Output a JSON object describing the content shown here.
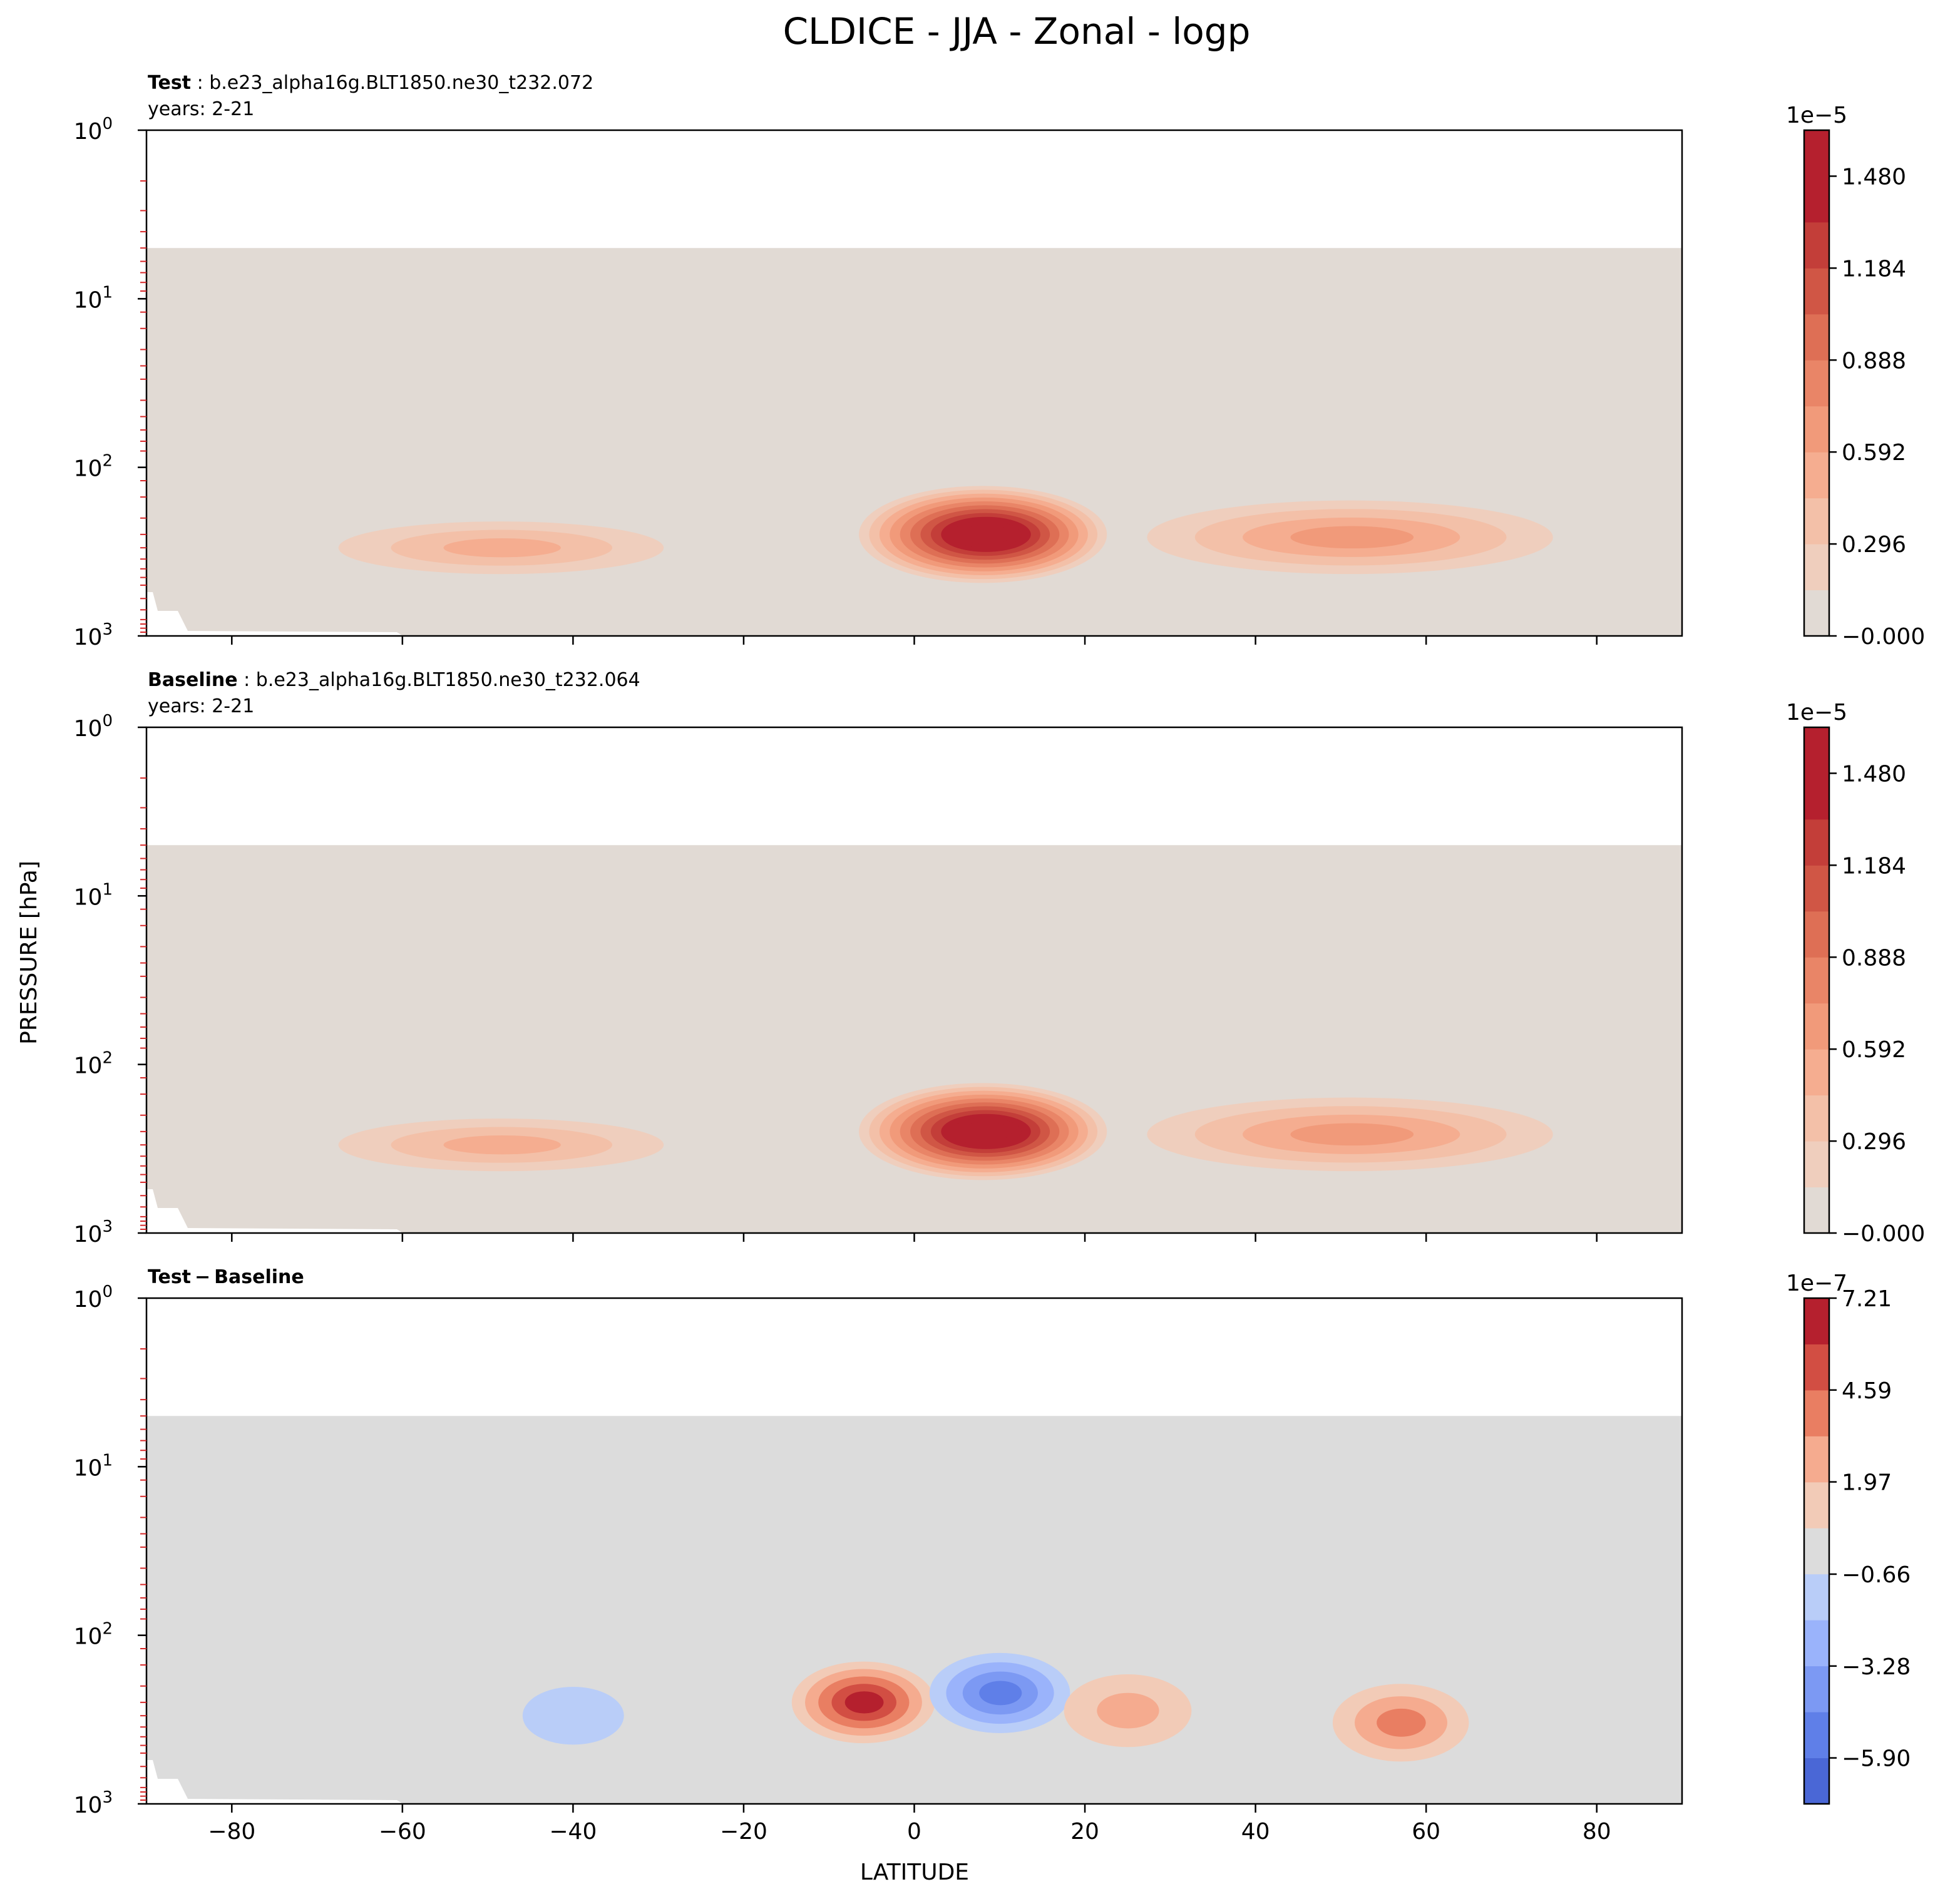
{
  "figure": {
    "title": "CLDICE - JJA - Zonal - logp",
    "ylabel": "PRESSURE [hPa]",
    "xlabel": "LATITUDE"
  },
  "chart_data": [
    {
      "type": "heatmap",
      "panel": "test",
      "header_bold": "Test",
      "header_text": ": b.e23_alpha16g.BLT1850.ne30_t232.072",
      "subheader": "years: 2-21",
      "x_range": [
        -90,
        90
      ],
      "y_range_hPa": [
        1000,
        1
      ],
      "y_scale": "log",
      "x_ticks": [
        -80,
        -60,
        -40,
        -20,
        0,
        20,
        40,
        60,
        80
      ],
      "x_tick_labels_shown": false,
      "y_tick_labels": [
        "10^0",
        "10^1",
        "10^2",
        "10^3"
      ],
      "data_top_hPa": 5,
      "colorbar": {
        "offset_label": "1e−5",
        "tick_labels": [
          "1.480",
          "1.184",
          "0.888",
          "0.592",
          "0.296",
          "−0.000"
        ],
        "ticks": [
          1.48,
          1.184,
          0.888,
          0.592,
          0.296,
          0
        ],
        "range": [
          0,
          1.628
        ],
        "n_levels": 11
      },
      "features": [
        {
          "name": "tropical maximum",
          "lat": 8,
          "p_hPa": 250,
          "max": 1.6
        },
        {
          "name": "southern midlatitude band",
          "lat": [
            -70,
            -27
          ],
          "p_hPa": [
            200,
            450
          ],
          "max": 0.45
        },
        {
          "name": "northern midlatitude band",
          "lat": [
            25,
            77
          ],
          "p_hPa": [
            150,
            450
          ],
          "max": 0.6
        }
      ]
    },
    {
      "type": "heatmap",
      "panel": "baseline",
      "header_bold": "Baseline",
      "header_text": ": b.e23_alpha16g.BLT1850.ne30_t232.064",
      "subheader": "years: 2-21",
      "x_range": [
        -90,
        90
      ],
      "y_range_hPa": [
        1000,
        1
      ],
      "y_scale": "log",
      "x_ticks": [
        -80,
        -60,
        -40,
        -20,
        0,
        20,
        40,
        60,
        80
      ],
      "x_tick_labels_shown": false,
      "y_tick_labels": [
        "10^0",
        "10^1",
        "10^2",
        "10^3"
      ],
      "data_top_hPa": 5,
      "colorbar": {
        "offset_label": "1e−5",
        "tick_labels": [
          "1.480",
          "1.184",
          "0.888",
          "0.592",
          "0.296",
          "−0.000"
        ],
        "ticks": [
          1.48,
          1.184,
          0.888,
          0.592,
          0.296,
          0
        ],
        "range": [
          0,
          1.628
        ],
        "n_levels": 11
      },
      "features": [
        {
          "name": "tropical maximum",
          "lat": 8,
          "p_hPa": 250,
          "max": 1.58
        },
        {
          "name": "southern midlatitude band",
          "lat": [
            -70,
            -27
          ],
          "p_hPa": [
            200,
            450
          ],
          "max": 0.45
        },
        {
          "name": "northern midlatitude band",
          "lat": [
            25,
            77
          ],
          "p_hPa": [
            150,
            450
          ],
          "max": 0.6
        }
      ]
    },
    {
      "type": "heatmap",
      "panel": "difference",
      "header_bold": "Test − Baseline",
      "x_range": [
        -90,
        90
      ],
      "y_range_hPa": [
        1000,
        1
      ],
      "y_scale": "log",
      "x_ticks": [
        -80,
        -60,
        -40,
        -20,
        0,
        20,
        40,
        60,
        80
      ],
      "x_tick_labels": [
        "−80",
        "−60",
        "−40",
        "−20",
        "0",
        "20",
        "40",
        "60",
        "80"
      ],
      "y_tick_labels": [
        "10^0",
        "10^1",
        "10^2",
        "10^3"
      ],
      "data_top_hPa": 5,
      "colorbar": {
        "offset_label": "1e−7",
        "tick_labels": [
          "7.21",
          "4.59",
          "1.97",
          "−0.66",
          "−3.28",
          "−5.90"
        ],
        "ticks": [
          7.21,
          4.59,
          1.97,
          -0.66,
          -3.28,
          -5.9
        ],
        "range": [
          -7.21,
          7.21
        ],
        "n_levels": 11
      },
      "features": [
        {
          "name": "positive anomaly",
          "lat": -6,
          "p_hPa": 250,
          "max": 6.5
        },
        {
          "name": "negative anomaly",
          "lat": 10,
          "p_hPa": 220,
          "min": -5.5
        },
        {
          "name": "positive anomaly",
          "lat": 57,
          "p_hPa": 330,
          "max": 4.0
        },
        {
          "name": "negative anomaly",
          "lat": -40,
          "p_hPa": 300,
          "min": -1.5
        },
        {
          "name": "positive anomaly",
          "lat": 25,
          "p_hPa": 280,
          "max": 2.5
        }
      ]
    }
  ]
}
